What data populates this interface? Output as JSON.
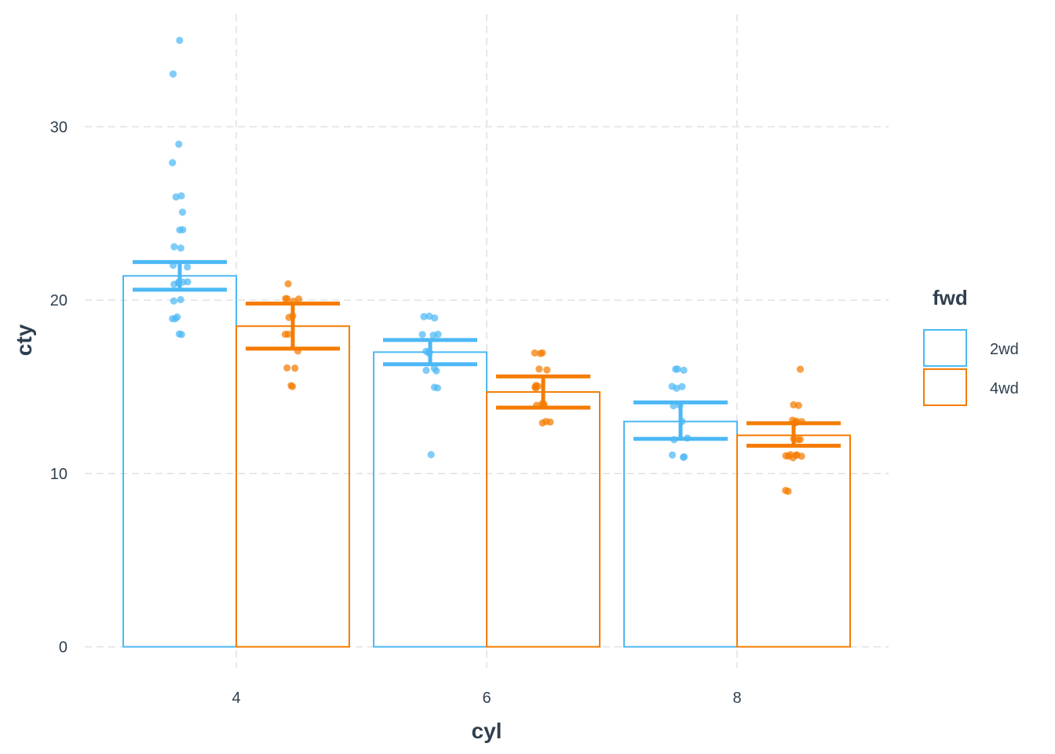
{
  "chart_data": {
    "type": "bar",
    "xlabel": "cyl",
    "ylabel": "cty",
    "categories": [
      "4",
      "6",
      "8"
    ],
    "ylim": [
      -1.2,
      36.5
    ],
    "yticks": [
      0,
      10,
      20,
      30
    ],
    "grid": true,
    "grid_style": "dashed",
    "legend": {
      "title": "fwd",
      "position": "right"
    },
    "series": [
      {
        "name": "2wd",
        "color": "#4db8f5",
        "values": [
          21.4,
          17.0,
          13.0
        ],
        "ci_low": [
          20.6,
          16.3,
          12.0
        ],
        "ci_high": [
          22.2,
          17.7,
          14.1
        ],
        "points": [
          [
            35,
            33,
            29,
            28,
            26,
            26,
            25,
            24,
            24,
            23,
            23,
            22,
            22,
            21,
            21,
            21,
            21,
            21,
            20,
            20,
            19,
            19,
            19,
            18,
            18
          ],
          [
            19,
            19,
            19,
            18,
            18,
            18,
            17,
            17,
            17,
            17,
            16,
            16,
            16,
            15,
            15,
            11
          ],
          [
            16,
            16,
            16,
            15,
            15,
            15,
            14,
            14,
            13,
            12,
            12,
            11,
            11,
            11
          ]
        ]
      },
      {
        "name": "4wd",
        "color": "#f57c00",
        "values": [
          18.5,
          14.7,
          12.2
        ],
        "ci_low": [
          17.2,
          13.8,
          11.6
        ],
        "ci_high": [
          19.8,
          15.6,
          12.9
        ],
        "points": [
          [
            21,
            20,
            20,
            20,
            20,
            19,
            19,
            18,
            18,
            17,
            16,
            16,
            15,
            15
          ],
          [
            17,
            17,
            17,
            16,
            16,
            15,
            15,
            15,
            15,
            14,
            14,
            14,
            14,
            13,
            13,
            13
          ],
          [
            16,
            14,
            14,
            13,
            13,
            13,
            13,
            13,
            12,
            12,
            12,
            11,
            11,
            11,
            11,
            11,
            11,
            11,
            9,
            9
          ]
        ]
      }
    ]
  }
}
